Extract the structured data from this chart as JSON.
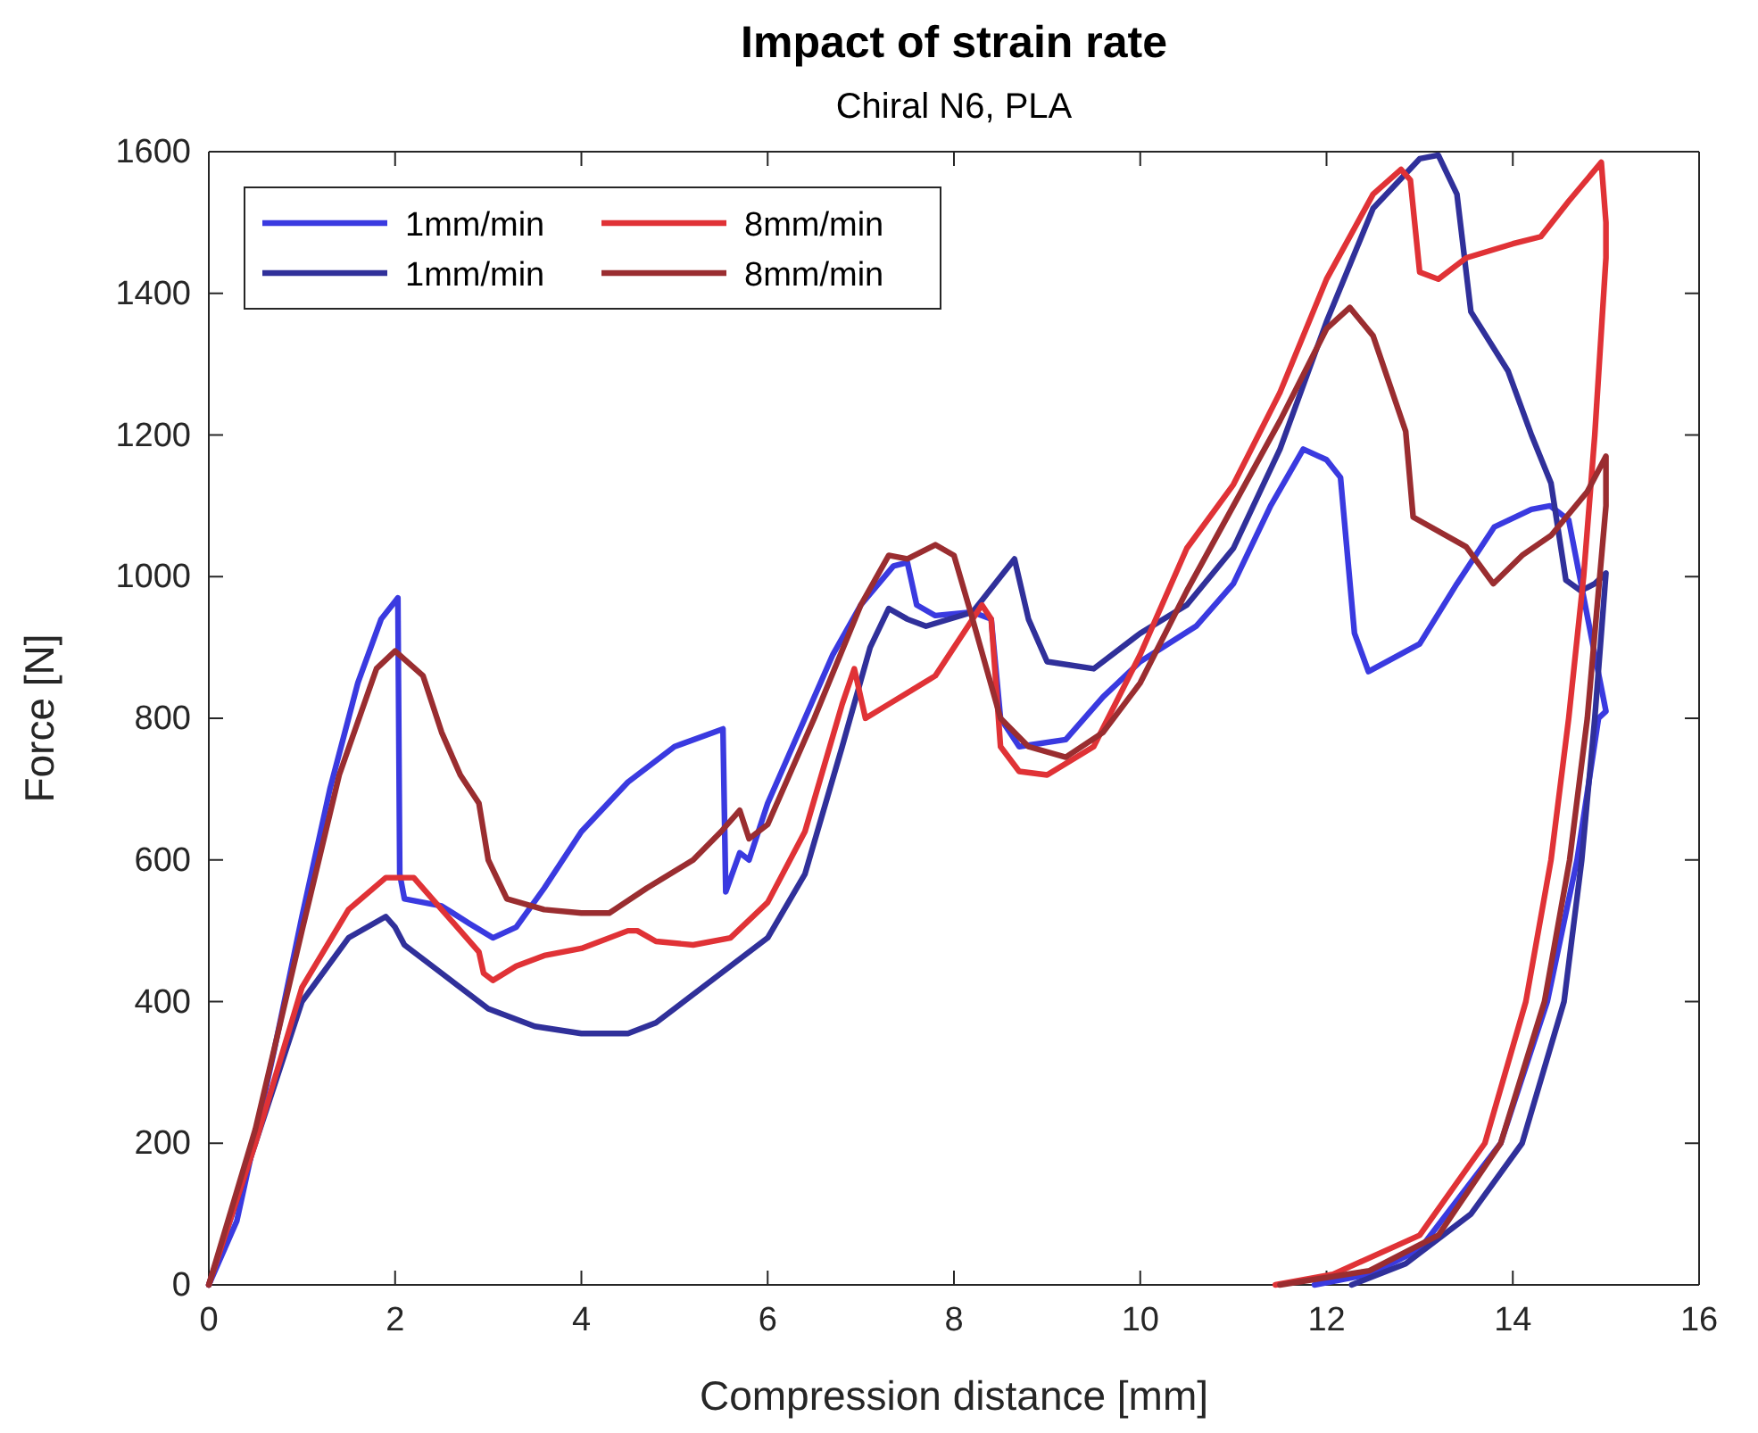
{
  "chart_data": {
    "type": "line",
    "title": "Impact of strain rate",
    "subtitle": "Chiral N6, PLA",
    "xlabel": "Compression distance [mm]",
    "ylabel": "Force [N]",
    "xlim": [
      0,
      16
    ],
    "xticks": [
      0,
      2,
      4,
      6,
      8,
      10,
      12,
      14,
      16
    ],
    "ylim": [
      0,
      1600
    ],
    "yticks": [
      0,
      200,
      400,
      600,
      800,
      1000,
      1200,
      1400,
      1600
    ],
    "grid": false,
    "legend": "top left",
    "line_style": "solid",
    "marker": "none",
    "series": [
      {
        "name": "1mm/min",
        "color": "#3a3ae0",
        "x": [
          0,
          0.3,
          0.7,
          1.0,
          1.3,
          1.6,
          1.85,
          2.03,
          2.05,
          2.1,
          2.5,
          2.8,
          3.05,
          3.3,
          3.6,
          4.0,
          4.5,
          5.0,
          5.52,
          5.55,
          5.7,
          5.8,
          6.0,
          6.4,
          6.7,
          7.0,
          7.35,
          7.5,
          7.6,
          7.8,
          8.2,
          8.4,
          8.5,
          8.7,
          9.2,
          9.6,
          10.0,
          10.6,
          11.0,
          11.4,
          11.75,
          12.0,
          12.15,
          12.3,
          12.45,
          13.0,
          13.4,
          13.8,
          14.2,
          14.4,
          14.6,
          14.88,
          15.0,
          14.92,
          14.69,
          14.37,
          13.87,
          13.0,
          12.46,
          11.87
        ],
        "values": [
          0,
          90,
          330,
          520,
          700,
          850,
          940,
          970,
          580,
          545,
          535,
          510,
          490,
          505,
          560,
          640,
          710,
          760,
          785,
          555,
          610,
          600,
          680,
          800,
          890,
          960,
          1015,
          1020,
          960,
          945,
          950,
          940,
          800,
          760,
          770,
          830,
          880,
          930,
          990,
          1100,
          1180,
          1165,
          1140,
          920,
          866,
          905,
          990,
          1070,
          1095,
          1100,
          1080,
          890,
          810,
          800,
          600,
          400,
          200,
          50,
          15,
          0
        ]
      },
      {
        "name": "1mm/min",
        "color": "#30309a",
        "x": [
          0,
          1.0,
          1.5,
          1.9,
          2.0,
          2.1,
          2.5,
          3.0,
          3.5,
          4.0,
          4.5,
          4.8,
          5.2,
          5.6,
          6.0,
          6.4,
          6.8,
          7.1,
          7.3,
          7.5,
          7.7,
          8.2,
          8.5,
          8.65,
          8.8,
          9.0,
          9.5,
          10.0,
          10.5,
          11.0,
          11.5,
          12.0,
          12.5,
          13.0,
          13.2,
          13.4,
          13.55,
          13.95,
          14.2,
          14.41,
          14.57,
          14.73,
          14.88,
          15.0,
          14.88,
          14.74,
          14.55,
          14.1,
          13.55,
          12.85,
          12.27
        ],
        "values": [
          0,
          400,
          490,
          520,
          505,
          480,
          440,
          390,
          365,
          355,
          355,
          370,
          410,
          450,
          490,
          580,
          760,
          900,
          955,
          940,
          930,
          950,
          1000,
          1025,
          940,
          880,
          870,
          920,
          960,
          1040,
          1180,
          1360,
          1520,
          1590,
          1595,
          1540,
          1374,
          1290,
          1200,
          1132,
          995,
          980,
          990,
          1005,
          800,
          600,
          400,
          200,
          100,
          30,
          0
        ]
      },
      {
        "name": "8mm/min",
        "color": "#e03236",
        "x": [
          0,
          0.5,
          1.0,
          1.5,
          1.9,
          2.2,
          2.5,
          2.9,
          2.95,
          3.05,
          3.3,
          3.6,
          4.0,
          4.5,
          4.6,
          4.8,
          5.2,
          5.6,
          6.0,
          6.4,
          6.8,
          6.93,
          7.05,
          7.3,
          7.8,
          8.1,
          8.3,
          8.4,
          8.5,
          8.7,
          9.0,
          9.5,
          10.0,
          10.5,
          11.0,
          11.5,
          12.0,
          12.5,
          12.8,
          12.9,
          13.0,
          13.2,
          13.5,
          14.0,
          14.3,
          14.6,
          14.95,
          15.0,
          15.0,
          14.88,
          14.76,
          14.6,
          14.41,
          14.14,
          13.7,
          13.0,
          12.07,
          11.45
        ],
        "values": [
          0,
          200,
          420,
          530,
          575,
          575,
          530,
          470,
          440,
          430,
          450,
          465,
          475,
          500,
          500,
          485,
          480,
          490,
          540,
          640,
          820,
          870,
          800,
          820,
          860,
          920,
          960,
          940,
          760,
          725,
          720,
          760,
          890,
          1040,
          1130,
          1260,
          1420,
          1540,
          1575,
          1560,
          1430,
          1420,
          1450,
          1470,
          1480,
          1530,
          1585,
          1500,
          1450,
          1200,
          1000,
          800,
          600,
          400,
          200,
          70,
          15,
          0
        ]
      },
      {
        "name": "8mm/min",
        "color": "#9a2d30",
        "x": [
          0,
          0.5,
          1.0,
          1.4,
          1.8,
          2.0,
          2.3,
          2.5,
          2.7,
          2.9,
          3.0,
          3.2,
          3.6,
          4.0,
          4.3,
          4.7,
          5.2,
          5.5,
          5.7,
          5.8,
          6.0,
          6.5,
          7.0,
          7.3,
          7.5,
          7.8,
          8.0,
          8.2,
          8.5,
          8.8,
          9.2,
          9.6,
          10.0,
          10.5,
          11.0,
          11.5,
          12.0,
          12.25,
          12.5,
          12.85,
          12.93,
          13.5,
          13.79,
          14.1,
          14.41,
          14.8,
          15.0,
          15.0,
          14.8,
          14.61,
          14.34,
          13.87,
          13.2,
          12.46,
          11.5
        ],
        "values": [
          0,
          220,
          500,
          720,
          870,
          895,
          860,
          780,
          720,
          680,
          600,
          545,
          530,
          525,
          525,
          560,
          600,
          640,
          670,
          630,
          650,
          800,
          960,
          1030,
          1025,
          1045,
          1030,
          940,
          800,
          760,
          745,
          780,
          850,
          980,
          1100,
          1220,
          1350,
          1380,
          1340,
          1205,
          1084,
          1042,
          990,
          1030,
          1058,
          1120,
          1170,
          1100,
          800,
          600,
          400,
          200,
          70,
          20,
          0
        ]
      }
    ]
  }
}
